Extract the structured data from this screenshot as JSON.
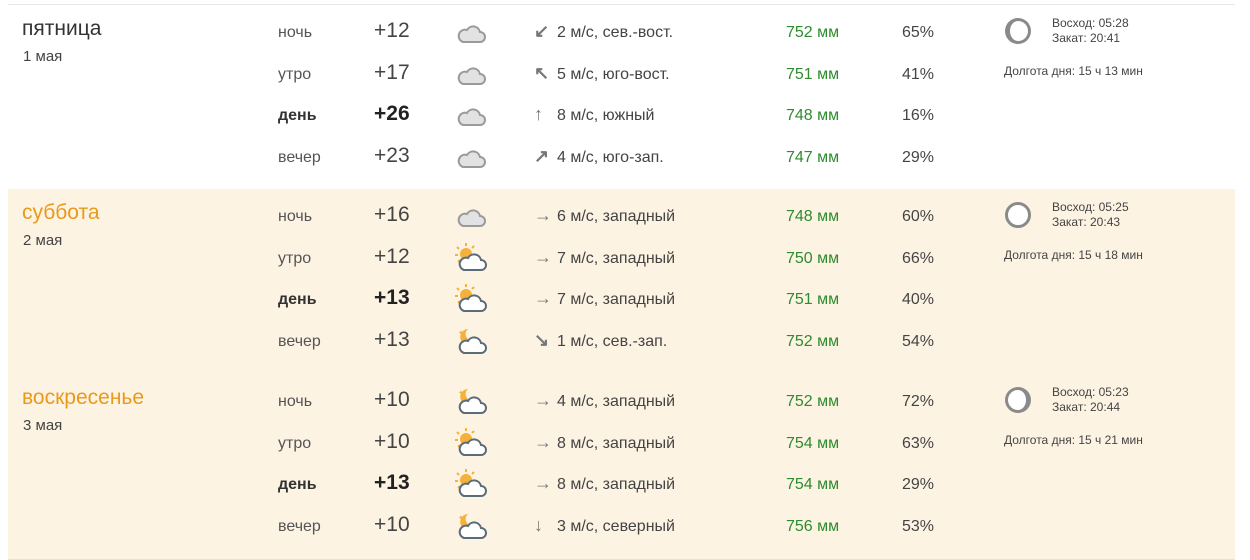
{
  "days": [
    {
      "name": "пятница",
      "date": "1 мая",
      "weekend": false,
      "moon": "waning-moon",
      "sunrise": "Восход: 05:28",
      "sunset": "Закат: 20:41",
      "daylength": "Долгота дня: 15 ч 13 мин",
      "rows": [
        {
          "part": "ночь",
          "temp": "+12",
          "icon": "cloud",
          "arrow": "↙",
          "wind": "2 м/с, сев.-вост.",
          "pressure": "752 мм",
          "humidity": "65%"
        },
        {
          "part": "утро",
          "temp": "+17",
          "icon": "cloud",
          "arrow": "↖",
          "wind": "5 м/с, юго-вост.",
          "pressure": "751 мм",
          "humidity": "41%"
        },
        {
          "part": "день",
          "temp": "+26",
          "icon": "cloud",
          "arrow": "↑",
          "wind": "8 м/с, южный",
          "pressure": "748 мм",
          "humidity": "16%",
          "bold": true
        },
        {
          "part": "вечер",
          "temp": "+23",
          "icon": "cloud",
          "arrow": "↗",
          "wind": "4 м/с, юго-зап.",
          "pressure": "747 мм",
          "humidity": "29%"
        }
      ]
    },
    {
      "name": "суббота",
      "date": "2 мая",
      "weekend": true,
      "moon": "full-moon",
      "sunrise": "Восход: 05:25",
      "sunset": "Закат: 20:43",
      "daylength": "Долгота дня: 15 ч 18 мин",
      "rows": [
        {
          "part": "ночь",
          "temp": "+16",
          "icon": "cloud",
          "arrow": "→",
          "wind": "6 м/с, западный",
          "pressure": "748 мм",
          "humidity": "60%"
        },
        {
          "part": "утро",
          "temp": "+12",
          "icon": "sun-cloud",
          "arrow": "→",
          "wind": "7 м/с, западный",
          "pressure": "750 мм",
          "humidity": "66%"
        },
        {
          "part": "день",
          "temp": "+13",
          "icon": "sun-cloud",
          "arrow": "→",
          "wind": "7 м/с, западный",
          "pressure": "751 мм",
          "humidity": "40%",
          "bold": true
        },
        {
          "part": "вечер",
          "temp": "+13",
          "icon": "moon-cloud",
          "arrow": "↘",
          "wind": "1 м/с, сев.-зап.",
          "pressure": "752 мм",
          "humidity": "54%"
        }
      ]
    },
    {
      "name": "воскресенье",
      "date": "3 мая",
      "weekend": true,
      "moon": "waxing-moon",
      "sunrise": "Восход: 05:23",
      "sunset": "Закат: 20:44",
      "daylength": "Долгота дня: 15 ч 21 мин",
      "rows": [
        {
          "part": "ночь",
          "temp": "+10",
          "icon": "moon-cloud",
          "arrow": "→",
          "wind": "4 м/с, западный",
          "pressure": "752 мм",
          "humidity": "72%"
        },
        {
          "part": "утро",
          "temp": "+10",
          "icon": "sun-cloud",
          "arrow": "→",
          "wind": "8 м/с, западный",
          "pressure": "754 мм",
          "humidity": "63%"
        },
        {
          "part": "день",
          "temp": "+13",
          "icon": "sun-cloud",
          "arrow": "→",
          "wind": "8 м/с, западный",
          "pressure": "754 мм",
          "humidity": "29%",
          "bold": true
        },
        {
          "part": "вечер",
          "temp": "+10",
          "icon": "moon-cloud",
          "arrow": "↓",
          "wind": "3 м/с, северный",
          "pressure": "756 мм",
          "humidity": "53%"
        }
      ]
    }
  ],
  "colors": {
    "weekend_bg": "#fdf3e3",
    "weekend_title": "#e89a1c",
    "pressure": "#2e8b2e"
  }
}
